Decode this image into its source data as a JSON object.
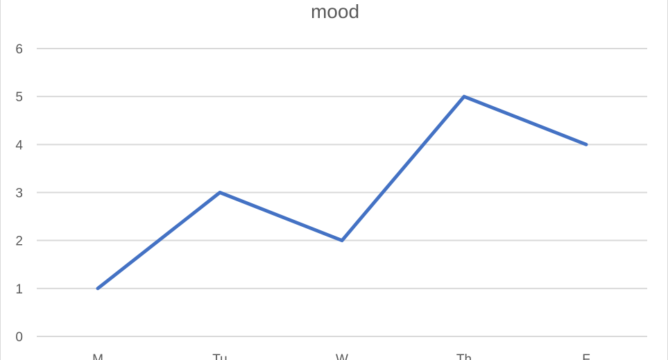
{
  "chart_data": {
    "type": "line",
    "title": "mood",
    "categories": [
      "M",
      "Tu",
      "W",
      "Th",
      "F"
    ],
    "series": [
      {
        "values": [
          1,
          3,
          2,
          5,
          4
        ],
        "color": "#4472c4"
      }
    ],
    "ylim": [
      0,
      6
    ],
    "yticks": [
      "0",
      "1",
      "2",
      "3",
      "4",
      "5",
      "6"
    ],
    "grid": true,
    "legend": "none",
    "xlabel": "",
    "ylabel": ""
  }
}
